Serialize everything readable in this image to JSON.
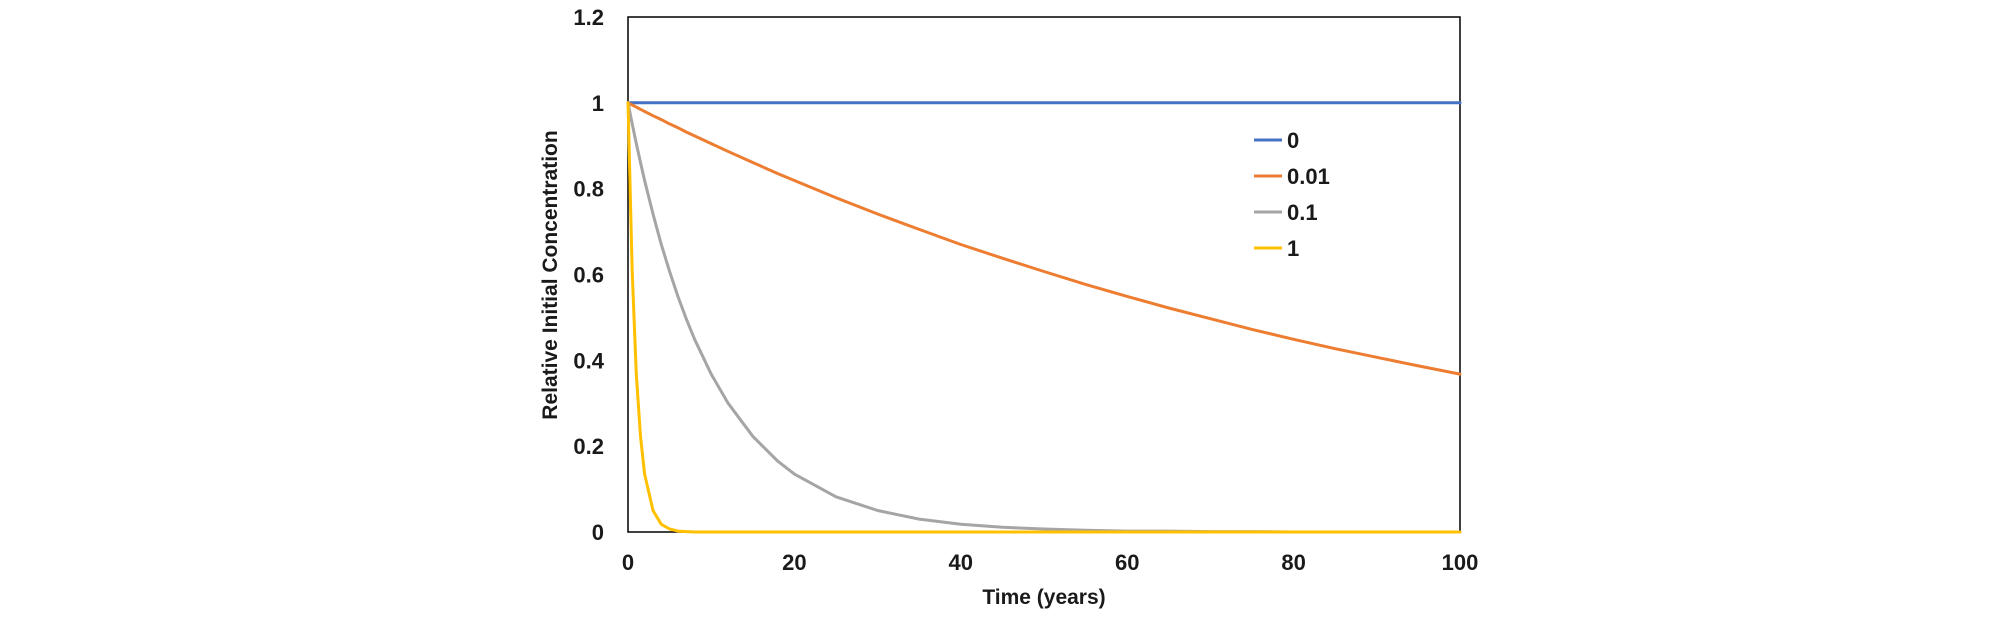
{
  "chart_data": {
    "type": "line",
    "title": "",
    "xlabel": "Time (years)",
    "ylabel": "Relative Initial Concentration",
    "xlim": [
      0,
      100
    ],
    "ylim": [
      0,
      1.2
    ],
    "x_ticks": [
      0,
      20,
      40,
      60,
      80,
      100
    ],
    "x_tick_labels": [
      "0",
      "20",
      "40",
      "60",
      "80",
      "100"
    ],
    "y_ticks": [
      0,
      0.2,
      0.4,
      0.6,
      0.8,
      1,
      1.2
    ],
    "y_tick_labels": [
      "0",
      "0.2",
      "0.4",
      "0.6",
      "0.8",
      "1",
      "1.2"
    ],
    "grid": false,
    "legend_position": "top-right",
    "x": [
      0,
      0.5,
      1,
      1.5,
      2,
      3,
      4,
      5,
      6,
      7,
      8,
      10,
      12,
      15,
      18,
      20,
      25,
      30,
      35,
      40,
      45,
      50,
      55,
      60,
      65,
      70,
      75,
      80,
      85,
      90,
      95,
      100
    ],
    "series": [
      {
        "name": "0",
        "color": "#4472C4",
        "values": [
          1,
          1,
          1,
          1,
          1,
          1,
          1,
          1,
          1,
          1,
          1,
          1,
          1,
          1,
          1,
          1,
          1,
          1,
          1,
          1,
          1,
          1,
          1,
          1,
          1,
          1,
          1,
          1,
          1,
          1,
          1,
          1
        ]
      },
      {
        "name": "0.01",
        "color": "#ED7D31",
        "values": [
          1,
          0.995,
          0.99,
          0.985,
          0.98,
          0.97,
          0.961,
          0.951,
          0.942,
          0.932,
          0.923,
          0.905,
          0.887,
          0.861,
          0.835,
          0.819,
          0.779,
          0.741,
          0.705,
          0.67,
          0.638,
          0.607,
          0.577,
          0.549,
          0.522,
          0.497,
          0.472,
          0.449,
          0.427,
          0.407,
          0.387,
          0.368
        ]
      },
      {
        "name": "0.1",
        "color": "#A5A5A5",
        "values": [
          1,
          0.951,
          0.905,
          0.861,
          0.819,
          0.741,
          0.67,
          0.607,
          0.549,
          0.497,
          0.449,
          0.368,
          0.301,
          0.223,
          0.165,
          0.135,
          0.082,
          0.05,
          0.03,
          0.018,
          0.011,
          0.007,
          0.004,
          0.002,
          0.002,
          0.001,
          0.001,
          0,
          0,
          0,
          0,
          0
        ]
      },
      {
        "name": "1",
        "color": "#FFC000",
        "values": [
          1,
          0.607,
          0.368,
          0.223,
          0.135,
          0.05,
          0.018,
          0.007,
          0.002,
          0.001,
          0,
          0,
          0,
          0,
          0,
          0,
          0,
          0,
          0,
          0,
          0,
          0,
          0,
          0,
          0,
          0,
          0,
          0,
          0,
          0,
          0,
          0
        ]
      }
    ]
  }
}
